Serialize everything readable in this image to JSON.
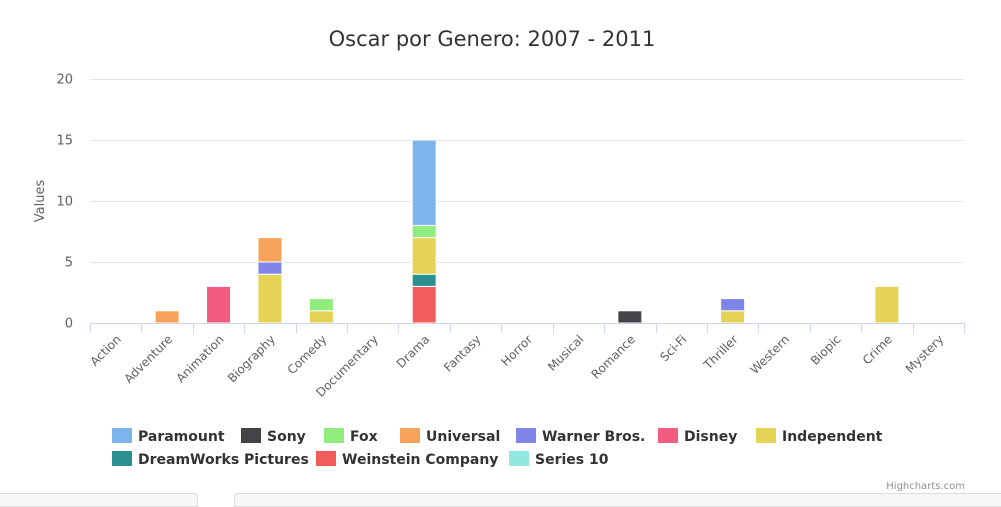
{
  "chart_data": {
    "type": "bar",
    "stacked": true,
    "title": "Oscar por Genero: 2007 - 2011",
    "xlabel": "",
    "ylabel": "Values",
    "ylim": [
      0,
      20
    ],
    "yticks": [
      0,
      5,
      10,
      15,
      20
    ],
    "grid": true,
    "legend_position": "bottom",
    "categories": [
      "Action",
      "Adventure",
      "Animation",
      "Biography",
      "Comedy",
      "Documentary",
      "Drama",
      "Fantasy",
      "Horror",
      "Musical",
      "Romance",
      "Sci-Fi",
      "Thriller",
      "Western",
      "Biopic",
      "Crime",
      "Mystery"
    ],
    "series": [
      {
        "name": "Paramount",
        "color": "#7cb5ec",
        "values": [
          0,
          0,
          0,
          0,
          0,
          0,
          7,
          0,
          0,
          0,
          0,
          0,
          0,
          0,
          0,
          0,
          0
        ]
      },
      {
        "name": "Sony",
        "color": "#434348",
        "values": [
          0,
          0,
          0,
          0,
          0,
          0,
          0,
          0,
          0,
          0,
          1,
          0,
          0,
          0,
          0,
          0,
          0
        ]
      },
      {
        "name": "Fox",
        "color": "#90ed7d",
        "values": [
          0,
          0,
          0,
          0,
          1,
          0,
          1,
          0,
          0,
          0,
          0,
          0,
          0,
          0,
          0,
          0,
          0
        ]
      },
      {
        "name": "Universal",
        "color": "#f7a35c",
        "values": [
          0,
          1,
          0,
          2,
          0,
          0,
          0,
          0,
          0,
          0,
          0,
          0,
          0,
          0,
          0,
          0,
          0
        ]
      },
      {
        "name": "Warner Bros.",
        "color": "#8085e9",
        "values": [
          0,
          0,
          0,
          1,
          0,
          0,
          0,
          0,
          0,
          0,
          0,
          0,
          1,
          0,
          0,
          0,
          0
        ]
      },
      {
        "name": "Disney",
        "color": "#f15c80",
        "values": [
          0,
          0,
          3,
          0,
          0,
          0,
          0,
          0,
          0,
          0,
          0,
          0,
          0,
          0,
          0,
          0,
          0
        ]
      },
      {
        "name": "Independent",
        "color": "#e4d354",
        "values": [
          0,
          0,
          0,
          4,
          1,
          0,
          3,
          0,
          0,
          0,
          0,
          0,
          1,
          0,
          0,
          3,
          0
        ]
      },
      {
        "name": "DreamWorks Pictures",
        "color": "#2b908f",
        "values": [
          0,
          0,
          0,
          0,
          0,
          0,
          1,
          0,
          0,
          0,
          0,
          0,
          0,
          0,
          0,
          0,
          0
        ]
      },
      {
        "name": "Weinstein Company",
        "color": "#f45b5b",
        "values": [
          0,
          0,
          0,
          0,
          0,
          0,
          3,
          0,
          0,
          0,
          0,
          0,
          0,
          0,
          0,
          0,
          0
        ]
      },
      {
        "name": "Series 10",
        "color": "#91e8e1",
        "values": [
          0,
          0,
          0,
          0,
          0,
          0,
          0,
          0,
          0,
          0,
          0,
          0,
          0,
          0,
          0,
          0,
          0
        ]
      }
    ]
  },
  "credits": "Highcharts.com"
}
